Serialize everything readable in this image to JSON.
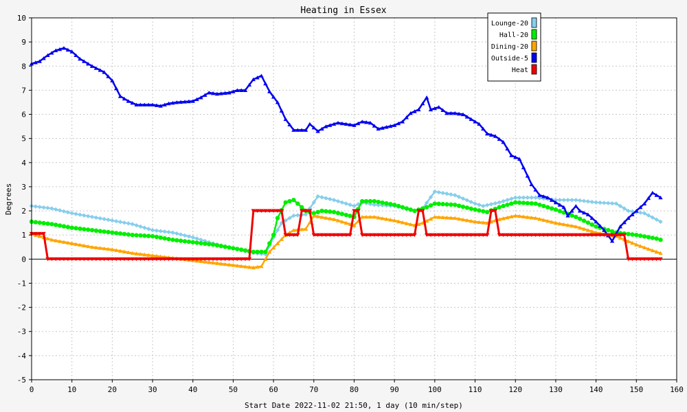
{
  "chart_data": {
    "type": "line",
    "title": "Heating in Essex",
    "xlabel": "Start Date 2022-11-02 21:50, 1 day (10 min/step)",
    "ylabel": "Degrees",
    "xlim": [
      0,
      160
    ],
    "ylim": [
      -5,
      10
    ],
    "x_ticks": [
      0,
      10,
      20,
      30,
      40,
      50,
      60,
      70,
      80,
      90,
      100,
      110,
      120,
      130,
      140,
      150,
      160
    ],
    "y_ticks": [
      -5,
      -4,
      -3,
      -2,
      -1,
      0,
      1,
      2,
      3,
      4,
      5,
      6,
      7,
      8,
      9,
      10
    ],
    "grid": true,
    "legend_position": "top-right",
    "series": [
      {
        "name": "Lounge-20",
        "color": "#87ceeb",
        "marker": "diamond",
        "points": [
          [
            0,
            2.2
          ],
          [
            5,
            2.1
          ],
          [
            10,
            1.9
          ],
          [
            15,
            1.75
          ],
          [
            20,
            1.6
          ],
          [
            25,
            1.45
          ],
          [
            30,
            1.2
          ],
          [
            35,
            1.1
          ],
          [
            40,
            0.9
          ],
          [
            45,
            0.65
          ],
          [
            50,
            0.45
          ],
          [
            55,
            0.25
          ],
          [
            58,
            0.2
          ],
          [
            60,
            0.9
          ],
          [
            62,
            1.5
          ],
          [
            65,
            1.8
          ],
          [
            68,
            1.85
          ],
          [
            71,
            2.6
          ],
          [
            75,
            2.45
          ],
          [
            80,
            2.2
          ],
          [
            82,
            2.35
          ],
          [
            85,
            2.25
          ],
          [
            90,
            2.2
          ],
          [
            95,
            2.0
          ],
          [
            97,
            2.1
          ],
          [
            100,
            2.8
          ],
          [
            105,
            2.65
          ],
          [
            110,
            2.3
          ],
          [
            112,
            2.2
          ],
          [
            116,
            2.35
          ],
          [
            120,
            2.55
          ],
          [
            125,
            2.55
          ],
          [
            130,
            2.45
          ],
          [
            135,
            2.45
          ],
          [
            140,
            2.35
          ],
          [
            145,
            2.3
          ],
          [
            148,
            2.0
          ],
          [
            152,
            1.9
          ],
          [
            156,
            1.55
          ]
        ]
      },
      {
        "name": "Hall-20",
        "color": "#00ee00",
        "marker": "circle",
        "points": [
          [
            0,
            1.55
          ],
          [
            5,
            1.45
          ],
          [
            10,
            1.3
          ],
          [
            15,
            1.2
          ],
          [
            20,
            1.1
          ],
          [
            25,
            1.0
          ],
          [
            30,
            0.95
          ],
          [
            35,
            0.8
          ],
          [
            40,
            0.7
          ],
          [
            45,
            0.6
          ],
          [
            50,
            0.45
          ],
          [
            55,
            0.3
          ],
          [
            58,
            0.3
          ],
          [
            60,
            1.0
          ],
          [
            61,
            1.7
          ],
          [
            63,
            2.35
          ],
          [
            65,
            2.45
          ],
          [
            68,
            2.0
          ],
          [
            70,
            1.9
          ],
          [
            72,
            2.0
          ],
          [
            75,
            1.95
          ],
          [
            80,
            1.75
          ],
          [
            82,
            2.4
          ],
          [
            85,
            2.4
          ],
          [
            90,
            2.25
          ],
          [
            95,
            2.0
          ],
          [
            98,
            2.15
          ],
          [
            100,
            2.3
          ],
          [
            105,
            2.25
          ],
          [
            110,
            2.05
          ],
          [
            113,
            1.95
          ],
          [
            116,
            2.15
          ],
          [
            120,
            2.35
          ],
          [
            125,
            2.3
          ],
          [
            130,
            2.05
          ],
          [
            135,
            1.75
          ],
          [
            140,
            1.35
          ],
          [
            145,
            1.1
          ],
          [
            150,
            1.0
          ],
          [
            155,
            0.85
          ],
          [
            156,
            0.8
          ]
        ]
      },
      {
        "name": "Dining-20",
        "color": "#ffa500",
        "marker": "triangle",
        "points": [
          [
            0,
            1.05
          ],
          [
            5,
            0.8
          ],
          [
            10,
            0.65
          ],
          [
            15,
            0.5
          ],
          [
            20,
            0.4
          ],
          [
            25,
            0.25
          ],
          [
            30,
            0.15
          ],
          [
            35,
            0.05
          ],
          [
            40,
            -0.05
          ],
          [
            45,
            -0.15
          ],
          [
            50,
            -0.25
          ],
          [
            55,
            -0.35
          ],
          [
            57,
            -0.3
          ],
          [
            59,
            0.3
          ],
          [
            61,
            0.65
          ],
          [
            63,
            1.0
          ],
          [
            65,
            1.2
          ],
          [
            68,
            1.25
          ],
          [
            70,
            1.8
          ],
          [
            75,
            1.65
          ],
          [
            80,
            1.4
          ],
          [
            82,
            1.75
          ],
          [
            85,
            1.75
          ],
          [
            90,
            1.6
          ],
          [
            95,
            1.4
          ],
          [
            97,
            1.5
          ],
          [
            100,
            1.75
          ],
          [
            105,
            1.7
          ],
          [
            110,
            1.55
          ],
          [
            113,
            1.5
          ],
          [
            116,
            1.65
          ],
          [
            120,
            1.8
          ],
          [
            125,
            1.7
          ],
          [
            130,
            1.5
          ],
          [
            135,
            1.35
          ],
          [
            140,
            1.1
          ],
          [
            145,
            0.95
          ],
          [
            150,
            0.6
          ],
          [
            155,
            0.3
          ],
          [
            156,
            0.25
          ]
        ]
      },
      {
        "name": "Outside-5",
        "color": "#0000ee",
        "marker": "triangle",
        "points": [
          [
            0,
            8.1
          ],
          [
            2,
            8.2
          ],
          [
            4,
            8.45
          ],
          [
            6,
            8.65
          ],
          [
            8,
            8.75
          ],
          [
            10,
            8.6
          ],
          [
            12,
            8.3
          ],
          [
            15,
            8.0
          ],
          [
            18,
            7.75
          ],
          [
            20,
            7.4
          ],
          [
            22,
            6.75
          ],
          [
            24,
            6.55
          ],
          [
            26,
            6.4
          ],
          [
            30,
            6.4
          ],
          [
            32,
            6.35
          ],
          [
            34,
            6.45
          ],
          [
            36,
            6.5
          ],
          [
            40,
            6.55
          ],
          [
            42,
            6.7
          ],
          [
            44,
            6.9
          ],
          [
            46,
            6.85
          ],
          [
            49,
            6.9
          ],
          [
            51,
            7.0
          ],
          [
            53,
            7.0
          ],
          [
            55,
            7.45
          ],
          [
            57,
            7.6
          ],
          [
            59,
            6.95
          ],
          [
            61,
            6.5
          ],
          [
            63,
            5.8
          ],
          [
            65,
            5.35
          ],
          [
            68,
            5.35
          ],
          [
            69,
            5.6
          ],
          [
            71,
            5.3
          ],
          [
            73,
            5.5
          ],
          [
            76,
            5.65
          ],
          [
            80,
            5.55
          ],
          [
            82,
            5.7
          ],
          [
            84,
            5.65
          ],
          [
            86,
            5.4
          ],
          [
            90,
            5.55
          ],
          [
            92,
            5.7
          ],
          [
            94,
            6.05
          ],
          [
            96,
            6.2
          ],
          [
            97,
            6.45
          ],
          [
            98,
            6.7
          ],
          [
            99,
            6.2
          ],
          [
            101,
            6.3
          ],
          [
            103,
            6.05
          ],
          [
            105,
            6.05
          ],
          [
            107,
            6.0
          ],
          [
            109,
            5.8
          ],
          [
            111,
            5.6
          ],
          [
            113,
            5.2
          ],
          [
            115,
            5.1
          ],
          [
            117,
            4.85
          ],
          [
            119,
            4.3
          ],
          [
            121,
            4.15
          ],
          [
            124,
            3.1
          ],
          [
            126,
            2.65
          ],
          [
            128,
            2.55
          ],
          [
            130,
            2.35
          ],
          [
            132,
            2.15
          ],
          [
            133,
            1.8
          ],
          [
            135,
            2.2
          ],
          [
            136,
            2.0
          ],
          [
            138,
            1.85
          ],
          [
            140,
            1.55
          ],
          [
            142,
            1.2
          ],
          [
            144,
            0.75
          ],
          [
            146,
            1.35
          ],
          [
            148,
            1.7
          ],
          [
            150,
            2.0
          ],
          [
            152,
            2.3
          ],
          [
            154,
            2.75
          ],
          [
            156,
            2.55
          ]
        ]
      },
      {
        "name": "Heat",
        "color": "#ee0000",
        "marker": "triangle-down",
        "points": [
          [
            0,
            1.05
          ],
          [
            3,
            1.05
          ],
          [
            4,
            0
          ],
          [
            54,
            0
          ],
          [
            55,
            2.0
          ],
          [
            62,
            2.0
          ],
          [
            63,
            1.0
          ],
          [
            66,
            1.0
          ],
          [
            67,
            2.0
          ],
          [
            69,
            2.0
          ],
          [
            70,
            1.0
          ],
          [
            79,
            1.0
          ],
          [
            80,
            2.0
          ],
          [
            81,
            2.0
          ],
          [
            82,
            1.0
          ],
          [
            95,
            1.0
          ],
          [
            96,
            2.0
          ],
          [
            97,
            2.0
          ],
          [
            98,
            1.0
          ],
          [
            113,
            1.0
          ],
          [
            114,
            2.0
          ],
          [
            115,
            2.0
          ],
          [
            116,
            1.0
          ],
          [
            147,
            1.0
          ],
          [
            148,
            0
          ],
          [
            156,
            0
          ]
        ]
      }
    ]
  }
}
